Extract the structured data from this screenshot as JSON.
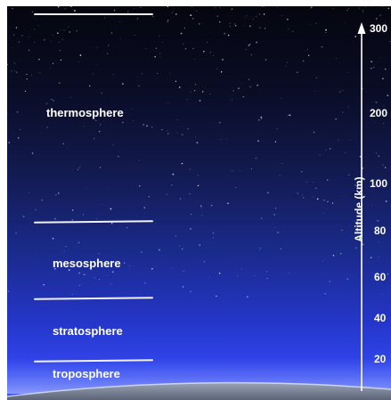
{
  "layers": [
    {
      "id": "thermosphere",
      "label": "thermosphere"
    },
    {
      "id": "mesosphere",
      "label": "mesosphere"
    },
    {
      "id": "stratosphere",
      "label": "stratosphere"
    },
    {
      "id": "troposphere",
      "label": "troposphere"
    }
  ],
  "axis": {
    "title": "Altitude (km)",
    "ticks": [
      "300",
      "200",
      "100",
      "80",
      "60",
      "40",
      "20"
    ]
  },
  "colors": {
    "sky_top": "#05060f",
    "sky_bottom": "#3a4ff5",
    "lines": "#f2f2f2",
    "text": "#ffffff"
  }
}
